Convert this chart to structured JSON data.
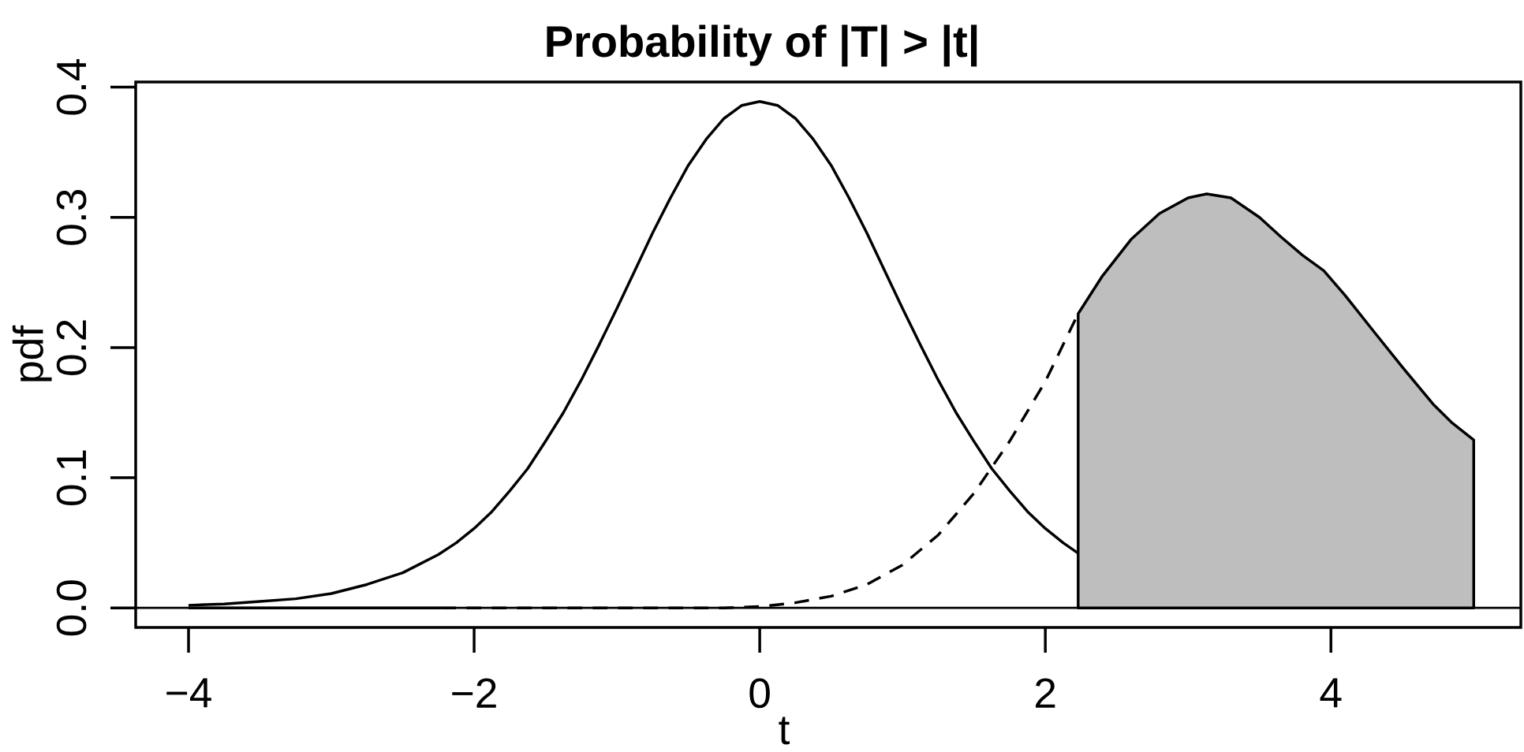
{
  "chart_data": {
    "type": "line",
    "title": "Probability of |T| > |t|",
    "xlabel": "t",
    "ylabel": "pdf",
    "xlim": [
      -4.37,
      5.33
    ],
    "ylim": [
      -0.015,
      0.404
    ],
    "xticks": [
      {
        "value": -4,
        "label": "−4"
      },
      {
        "value": -2,
        "label": "−2"
      },
      0,
      2,
      4
    ],
    "yticks": [
      {
        "value": 0,
        "label": "0.0"
      },
      0.1,
      0.2,
      0.3,
      0.4
    ],
    "ref_lines": [
      {
        "axis": "y",
        "value": 0,
        "color": "#000000"
      }
    ],
    "series": [
      {
        "color": "#000000",
        "line_style": "solid",
        "x": [
          -4,
          -3.75,
          -3.5,
          -3.25,
          -3,
          -2.75,
          -2.5,
          -2.25,
          -2.125,
          -2,
          -1.875,
          -1.75,
          -1.625,
          -1.5,
          -1.375,
          -1.25,
          -1.125,
          -1,
          -0.875,
          -0.75,
          -0.625,
          -0.5,
          -0.375,
          -0.25,
          -0.125,
          0,
          0.125,
          0.25,
          0.375,
          0.5,
          0.625,
          0.75,
          0.875,
          1,
          1.125,
          1.25,
          1.375,
          1.5,
          1.625,
          1.75,
          1.875,
          2,
          2.125,
          2.23
        ],
        "values": [
          0.002,
          0.003,
          0.005,
          0.007,
          0.011,
          0.018,
          0.027,
          0.041,
          0.05,
          0.061,
          0.074,
          0.09,
          0.107,
          0.128,
          0.15,
          0.175,
          0.202,
          0.23,
          0.259,
          0.288,
          0.315,
          0.34,
          0.36,
          0.376,
          0.386,
          0.389,
          0.386,
          0.376,
          0.36,
          0.34,
          0.315,
          0.288,
          0.259,
          0.23,
          0.202,
          0.175,
          0.15,
          0.128,
          0.107,
          0.09,
          0.074,
          0.061,
          0.05,
          0.042
        ]
      },
      {
        "color": "#000000",
        "line_style": "dashed",
        "x": [
          -2.23,
          -1.5,
          -1,
          -0.5,
          -0.25,
          0,
          0.25,
          0.5,
          0.75,
          1,
          1.25,
          1.5,
          1.75,
          2,
          2.23
        ],
        "values": [
          0,
          0,
          0,
          0,
          0,
          0.001,
          0.004,
          0.009,
          0.018,
          0.033,
          0.056,
          0.088,
          0.128,
          0.174,
          0.226
        ]
      },
      {
        "color": "#000000",
        "line_style": "solid",
        "x": [
          -4,
          -2.23
        ],
        "values": [
          0,
          0
        ]
      },
      {
        "type": "area",
        "color": "#bebebe",
        "x": [
          2.23,
          2.4,
          2.6,
          2.8,
          3.0,
          3.13,
          3.3,
          3.5,
          3.65,
          3.8,
          3.95,
          4.1,
          4.31,
          4.5,
          4.72,
          4.85,
          5.0
        ],
        "values": [
          0.226,
          0.255,
          0.283,
          0.303,
          0.315,
          0.318,
          0.315,
          0.3,
          0.285,
          0.271,
          0.259,
          0.24,
          0.211,
          0.185,
          0.156,
          0.142,
          0.129
        ]
      }
    ]
  }
}
